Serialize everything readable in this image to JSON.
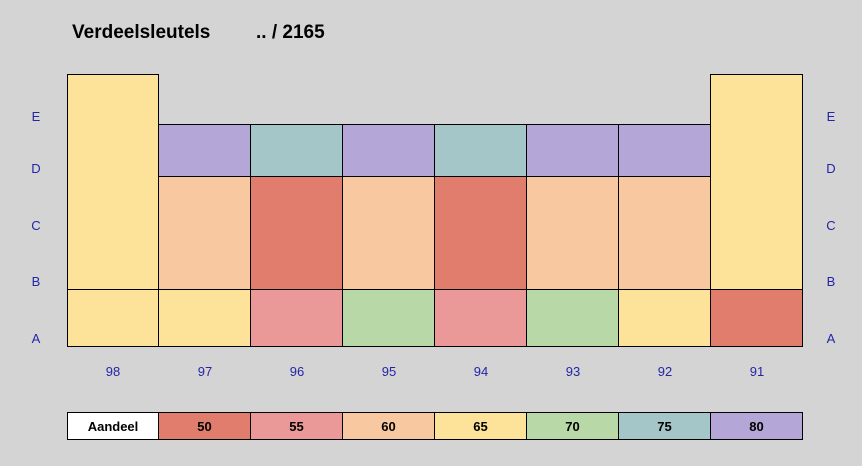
{
  "title": {
    "name": "Verdeelsleutels",
    "ref": ".. / 2165"
  },
  "row_labels": [
    "E",
    "D",
    "C",
    "B",
    "A"
  ],
  "columns": [
    "98",
    "97",
    "96",
    "95",
    "94",
    "93",
    "92",
    "91"
  ],
  "legend": {
    "label": "Aandeel",
    "items": [
      {
        "value": "50",
        "color": "#e07d6c"
      },
      {
        "value": "55",
        "color": "#ea9898"
      },
      {
        "value": "60",
        "color": "#f8c9a0"
      },
      {
        "value": "65",
        "color": "#fde39a"
      },
      {
        "value": "70",
        "color": "#b8d8a8"
      },
      {
        "value": "75",
        "color": "#a4c6c8"
      },
      {
        "value": "80",
        "color": "#b4a6d6"
      }
    ]
  },
  "colors": {
    "grid": "#d4d4d4",
    "label_blue": "#2424a8"
  }
}
